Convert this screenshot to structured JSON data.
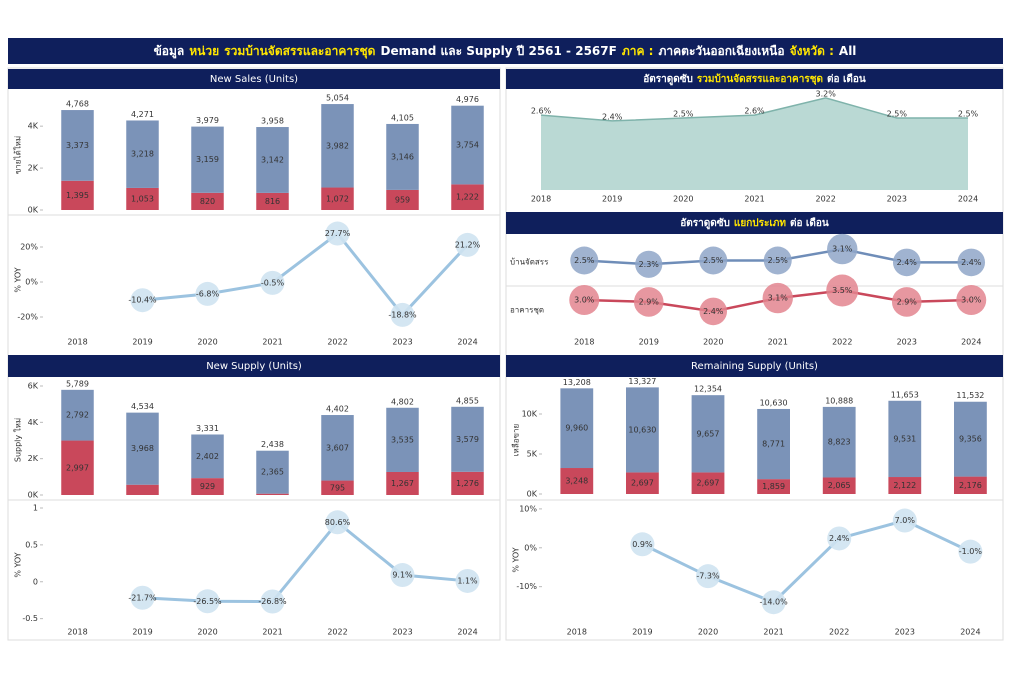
{
  "title_parts": [
    {
      "text": "ข้อมูล",
      "highlight": false
    },
    {
      "text": "หน่วย",
      "highlight": true
    },
    {
      "text": "รวมบ้านจัดสรรและอาคารชุด",
      "highlight": true
    },
    {
      "text": "Demand และ Supply ปี 2561 - 2567F",
      "highlight": false
    },
    {
      "text": "ภาค :",
      "highlight": true
    },
    {
      "text": "ภาคตะวันออกเฉียงเหนือ",
      "highlight": false
    },
    {
      "text": "จังหวัด :",
      "highlight": true
    },
    {
      "text": "All",
      "highlight": false
    }
  ],
  "chart_data": [
    {
      "type": "bar",
      "title": "New Sales (Units)",
      "ylabel": "ขายได้ใหม่",
      "ylim": [
        0,
        5200
      ],
      "yticks": [
        {
          "value": 0,
          "label": "0K"
        },
        {
          "value": 2000,
          "label": "2K"
        },
        {
          "value": 4000,
          "label": "4K"
        }
      ],
      "series": [
        {
          "color": "#c9485b",
          "values": [
            1395,
            1053,
            820,
            816,
            1072,
            959,
            1222
          ],
          "value_labels": [
            "1,395",
            "1,053",
            "820",
            "816",
            "1,072",
            "959",
            "1,222"
          ]
        },
        {
          "color": "#7b93b8",
          "values": [
            3373,
            3218,
            3159,
            3142,
            3982,
            3146,
            3754
          ],
          "value_labels": [
            "3,373",
            "3,218",
            "3,159",
            "3,142",
            "3,982",
            "3,146",
            "3,754"
          ]
        }
      ],
      "totals": [
        4768,
        4271,
        3979,
        3958,
        5054,
        4105,
        4976
      ],
      "total_labels": [
        "4,768",
        "4,271",
        "3,979",
        "3,958",
        "5,054",
        "4,105",
        "4,976"
      ]
    },
    {
      "type": "line",
      "ylabel": "% YOY",
      "categories": [
        "2018",
        "2019",
        "2020",
        "2021",
        "2022",
        "2023",
        "2024"
      ],
      "ylim": [
        -28,
        32
      ],
      "yticks": [
        {
          "value": 20,
          "label": "20%"
        },
        {
          "value": 0,
          "label": "0%"
        },
        {
          "value": -20,
          "label": "-20%"
        }
      ],
      "values": [
        null,
        -10.4,
        -6.8,
        -0.5,
        27.7,
        -18.8,
        21.2
      ],
      "value_labels": [
        null,
        "-10.4%",
        "-6.8%",
        "-0.5%",
        "27.7%",
        "-18.8%",
        "21.2%"
      ]
    },
    {
      "type": "area",
      "title_parts": [
        {
          "text": "อัตราดูดซับ",
          "highlight": false
        },
        {
          "text": "รวมบ้านจัดสรรและอาคารชุด",
          "highlight": true
        },
        {
          "text": "ต่อ เดือน",
          "highlight": false
        }
      ],
      "categories": [
        "2018",
        "2019",
        "2020",
        "2021",
        "2022",
        "2023",
        "2024"
      ],
      "ylim": [
        0,
        3.3
      ],
      "values": [
        2.6,
        2.4,
        2.5,
        2.6,
        3.2,
        2.5,
        2.5
      ],
      "value_labels": [
        "2.6%",
        "2.4%",
        "2.5%",
        "2.6%",
        "3.2%",
        "2.5%",
        "2.5%"
      ]
    },
    {
      "type": "bubble",
      "title_parts": [
        {
          "text": "อัตราดูดซับ",
          "highlight": false
        },
        {
          "text": "แยกประเภท",
          "highlight": true
        },
        {
          "text": "ต่อ เดือน",
          "highlight": false
        }
      ],
      "categories": [
        "2018",
        "2019",
        "2020",
        "2021",
        "2022",
        "2023",
        "2024"
      ],
      "series": [
        {
          "name": "บ้านจัดสรร",
          "color": "#6f8db8",
          "values": [
            2.5,
            2.3,
            2.5,
            2.5,
            3.1,
            2.4,
            2.4
          ],
          "value_labels": [
            "2.5%",
            "2.3%",
            "2.5%",
            "2.5%",
            "3.1%",
            "2.4%",
            "2.4%"
          ]
        },
        {
          "name": "อาคารชุด",
          "color": "#c9485b",
          "values": [
            3.0,
            2.9,
            2.4,
            3.1,
            3.5,
            2.9,
            3.0
          ],
          "value_labels": [
            "3.0%",
            "2.9%",
            "2.4%",
            "3.1%",
            "3.5%",
            "2.9%",
            "3.0%"
          ]
        }
      ]
    },
    {
      "type": "bar",
      "title": "New Supply (Units)",
      "ylabel": "Supply ใหม่",
      "ylim": [
        0,
        6000
      ],
      "yticks": [
        {
          "value": 0,
          "label": "0K"
        },
        {
          "value": 2000,
          "label": "2K"
        },
        {
          "value": 4000,
          "label": "4K"
        },
        {
          "value": 6000,
          "label": "6K"
        }
      ],
      "series": [
        {
          "color": "#c9485b",
          "values": [
            2997,
            566,
            929,
            73,
            795,
            1267,
            1276
          ],
          "value_labels": [
            "2,997",
            null,
            "929",
            null,
            "795",
            "1,267",
            "1,276"
          ]
        },
        {
          "color": "#7b93b8",
          "values": [
            2792,
            3968,
            2402,
            2365,
            3607,
            3535,
            3579
          ],
          "value_labels": [
            "2,792",
            "3,968",
            "2,402",
            "2,365",
            "3,607",
            "3,535",
            "3,579"
          ]
        }
      ],
      "totals": [
        5789,
        4534,
        3331,
        2438,
        4402,
        4802,
        4855
      ],
      "total_labels": [
        "5,789",
        "4,534",
        "3,331",
        "2,438",
        "4,402",
        "4,802",
        "4,855"
      ]
    },
    {
      "type": "line",
      "ylabel": "% YOY",
      "categories": [
        "2018",
        "2019",
        "2020",
        "2021",
        "2022",
        "2023",
        "2024"
      ],
      "ylim": [
        -0.6,
        1.0
      ],
      "yticks": [
        1,
        0.5,
        0,
        -0.5
      ],
      "values": [
        null,
        -0.217,
        -0.265,
        -0.268,
        0.806,
        0.091,
        0.011
      ],
      "value_labels": [
        null,
        "-21.7%",
        "-26.5%",
        "-26.8%",
        "80.6%",
        "9.1%",
        "1.1%"
      ]
    },
    {
      "type": "bar",
      "title": "Remaining Supply (Units)",
      "ylabel": "เหลือขาย",
      "ylim": [
        0,
        14000
      ],
      "yticks": [
        {
          "value": 0,
          "label": "0K"
        },
        {
          "value": 5000,
          "label": "5K"
        },
        {
          "value": 10000,
          "label": "10K"
        }
      ],
      "series": [
        {
          "color": "#c9485b",
          "values": [
            3248,
            2697,
            2697,
            1859,
            2065,
            2122,
            2176
          ],
          "value_labels": [
            "3,248",
            "2,697",
            "2,697",
            "1,859",
            "2,065",
            "2,122",
            "2,176"
          ]
        },
        {
          "color": "#7b93b8",
          "values": [
            9960,
            10630,
            9657,
            8771,
            8823,
            9531,
            9356
          ],
          "value_labels": [
            "9,960",
            "10,630",
            "9,657",
            "8,771",
            "8,823",
            "9,531",
            "9,356"
          ]
        }
      ],
      "totals": [
        13208,
        13327,
        12354,
        10630,
        10888,
        11653,
        11532
      ],
      "total_labels": [
        "13,208",
        "13,327",
        "12,354",
        "10,630",
        "10,888",
        "11,653",
        "11,532"
      ]
    },
    {
      "type": "line",
      "ylabel": "% YOY",
      "categories": [
        "2018",
        "2019",
        "2020",
        "2021",
        "2022",
        "2023",
        "2024"
      ],
      "ylim": [
        -16,
        11
      ],
      "yticks": [
        {
          "value": 10,
          "label": "10%"
        },
        {
          "value": 0,
          "label": "0%"
        },
        {
          "value": -10,
          "label": "-10%"
        }
      ],
      "values": [
        null,
        0.9,
        -7.3,
        -14.0,
        2.4,
        7.0,
        -1.0
      ],
      "value_labels": [
        null,
        "0.9%",
        "-7.3%",
        "-14.0%",
        "2.4%",
        "7.0%",
        "-1.0%"
      ]
    }
  ]
}
